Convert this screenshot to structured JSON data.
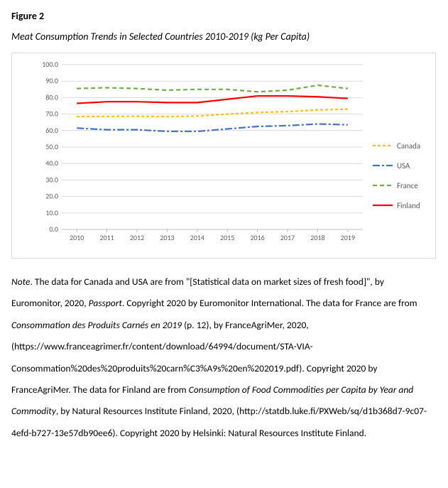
{
  "figure_label": "Figure 2",
  "figure_title": "Meat Consumption Trends in Selected Countries 2010-2019 (kg Per Capita)",
  "chart": {
    "type": "line",
    "background_color": "#ffffff",
    "border_color": "#d9d9d9",
    "grid_color": "#d9d9d9",
    "axis_text_color": "#595959",
    "axis_fontsize": 10,
    "x_categories": [
      "2010",
      "2011",
      "2012",
      "2013",
      "2014",
      "2015",
      "2016",
      "2017",
      "2018",
      "2019"
    ],
    "ylim": [
      0,
      100
    ],
    "ytick_step": 10,
    "y_decimals": 1,
    "line_width": 2.2,
    "series": [
      {
        "name": "Canada",
        "color": "#ffc000",
        "dash": "4 3",
        "values": [
          68.5,
          68.6,
          68.7,
          68.5,
          68.8,
          70.0,
          71.0,
          71.5,
          72.5,
          73.0
        ]
      },
      {
        "name": "USA",
        "color": "#4472c4",
        "dash": "10 3 3 3",
        "values": [
          61.5,
          60.5,
          60.5,
          59.5,
          59.5,
          61.0,
          62.5,
          63.0,
          64.0,
          63.5
        ]
      },
      {
        "name": "France",
        "color": "#70ad47",
        "dash": "6 4",
        "values": [
          85.5,
          86.0,
          85.5,
          84.5,
          85.0,
          85.0,
          83.5,
          84.5,
          87.5,
          85.5
        ]
      },
      {
        "name": "Finland",
        "color": "#ff0000",
        "dash": "",
        "values": [
          76.5,
          77.5,
          77.5,
          77.0,
          77.0,
          79.0,
          81.0,
          81.0,
          80.5,
          79.5
        ]
      }
    ]
  },
  "note_segments": [
    {
      "t": "Note",
      "ital": true
    },
    {
      "t": ". The data for Canada and USA are from \"[Statistical data on market sizes of fresh food]\", by Euromonitor, 2020, "
    },
    {
      "t": "Passport",
      "ital": true
    },
    {
      "t": ". Copyright 2020 by Euromonitor International. The data for France are from "
    },
    {
      "t": "Consommation des Produits Carnés en 2019",
      "ital": true
    },
    {
      "t": " (p. 12), by FranceAgriMer, 2020, (https://www.franceagrimer.fr/content/download/64994/document/STA-VIA-Consommation%20des%20produits%20carn%C3%A9s%20en%202019.pdf). Copyright 2020 by FranceAgriMer. The data for Finland are from "
    },
    {
      "t": "Consumption of Food Commodities per Capita by Year and Commodity",
      "ital": true
    },
    {
      "t": ", by Natural Resources Institute Finland, 2020, (http://statdb.luke.fi/PXWeb/sq/d1b368d7-9c07-4efd-b727-13e57db90ee6). Copyright 2020 by Helsinki: Natural Resources Institute Finland."
    }
  ]
}
